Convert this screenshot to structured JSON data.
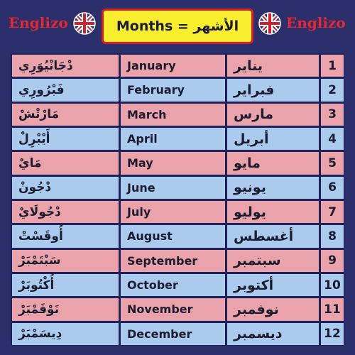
{
  "header": {
    "brand_left": "Englizo",
    "title": "Months = الأشهر",
    "brand_right": "Englizo"
  },
  "table": {
    "rows": [
      [
        "دْجَانْيُوَرِي",
        "January",
        "يناير",
        1
      ],
      [
        "فَبْرُورِي",
        "February",
        "فبراير",
        2
      ],
      [
        "مَارْتْشْ",
        "March",
        "مارس",
        3
      ],
      [
        "أَيْبْرِلْ",
        "April",
        "أبريل",
        4
      ],
      [
        "مَايْ",
        "May",
        "مايو",
        5
      ],
      [
        "دْجُونْ",
        "June",
        "يونيو",
        6
      ],
      [
        "دْجُولَايْ",
        "July",
        "يوليو",
        7
      ],
      [
        "أُوقَسْتْ",
        "August",
        "أغسطس",
        8
      ],
      [
        "سَبْتَمْبَرْ",
        "September",
        "سبتمبر",
        9
      ],
      [
        "أُكْتُوبَرْ",
        "October",
        "أكتوبر",
        10
      ],
      [
        "نَوْفَمْبَرْ",
        "November",
        "نوفمبر",
        11
      ],
      [
        "دِيسَمْبَرْ",
        "December",
        "ديسمبر",
        12
      ]
    ]
  }
}
